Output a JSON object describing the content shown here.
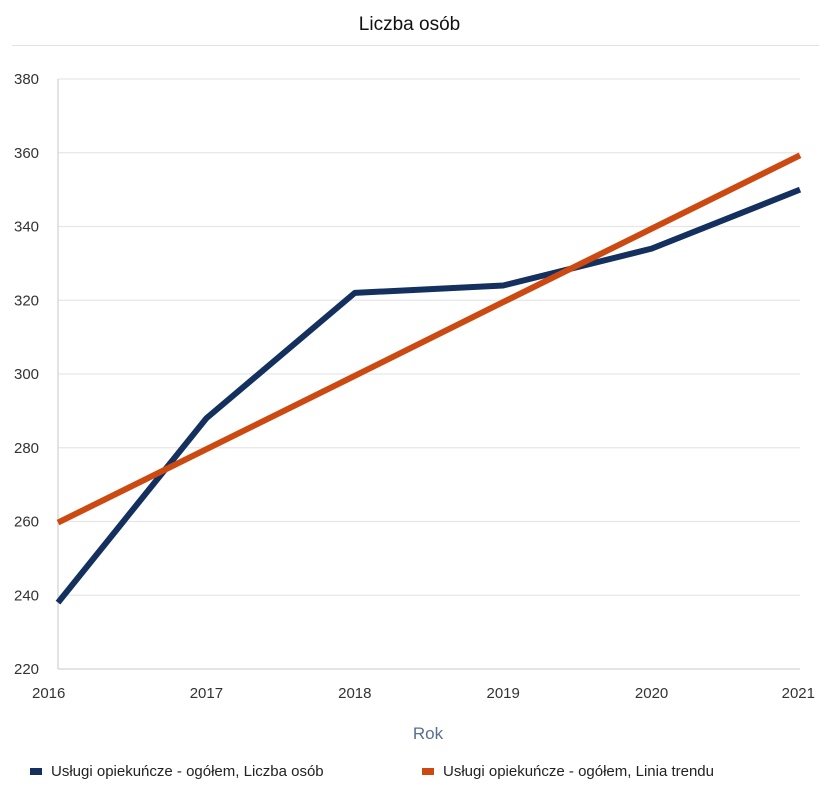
{
  "chart_data": {
    "type": "line",
    "title": "Liczba osób",
    "xlabel": "Rok",
    "ylabel": "",
    "x": [
      2016,
      2017,
      2018,
      2019,
      2020,
      2021
    ],
    "x_tick_labels": [
      "2016",
      "2017",
      "2018",
      "2019",
      "2020",
      "2021"
    ],
    "y_tick_labels": [
      "220",
      "240",
      "260",
      "280",
      "300",
      "320",
      "340",
      "360",
      "380"
    ],
    "ylim": [
      220,
      380
    ],
    "grid": true,
    "legend_position": "bottom",
    "series": [
      {
        "name": "Usługi opiekuńcze - ogółem, Liczba osób",
        "color": "#14305f",
        "values": [
          238,
          288,
          322,
          324,
          334,
          350
        ]
      },
      {
        "name": "Usługi opiekuńcze - ogółem, Linia trendu",
        "color": "#cc4a12",
        "values": [
          259.7,
          279.6,
          299.5,
          319.5,
          339.4,
          359.3
        ]
      }
    ]
  }
}
